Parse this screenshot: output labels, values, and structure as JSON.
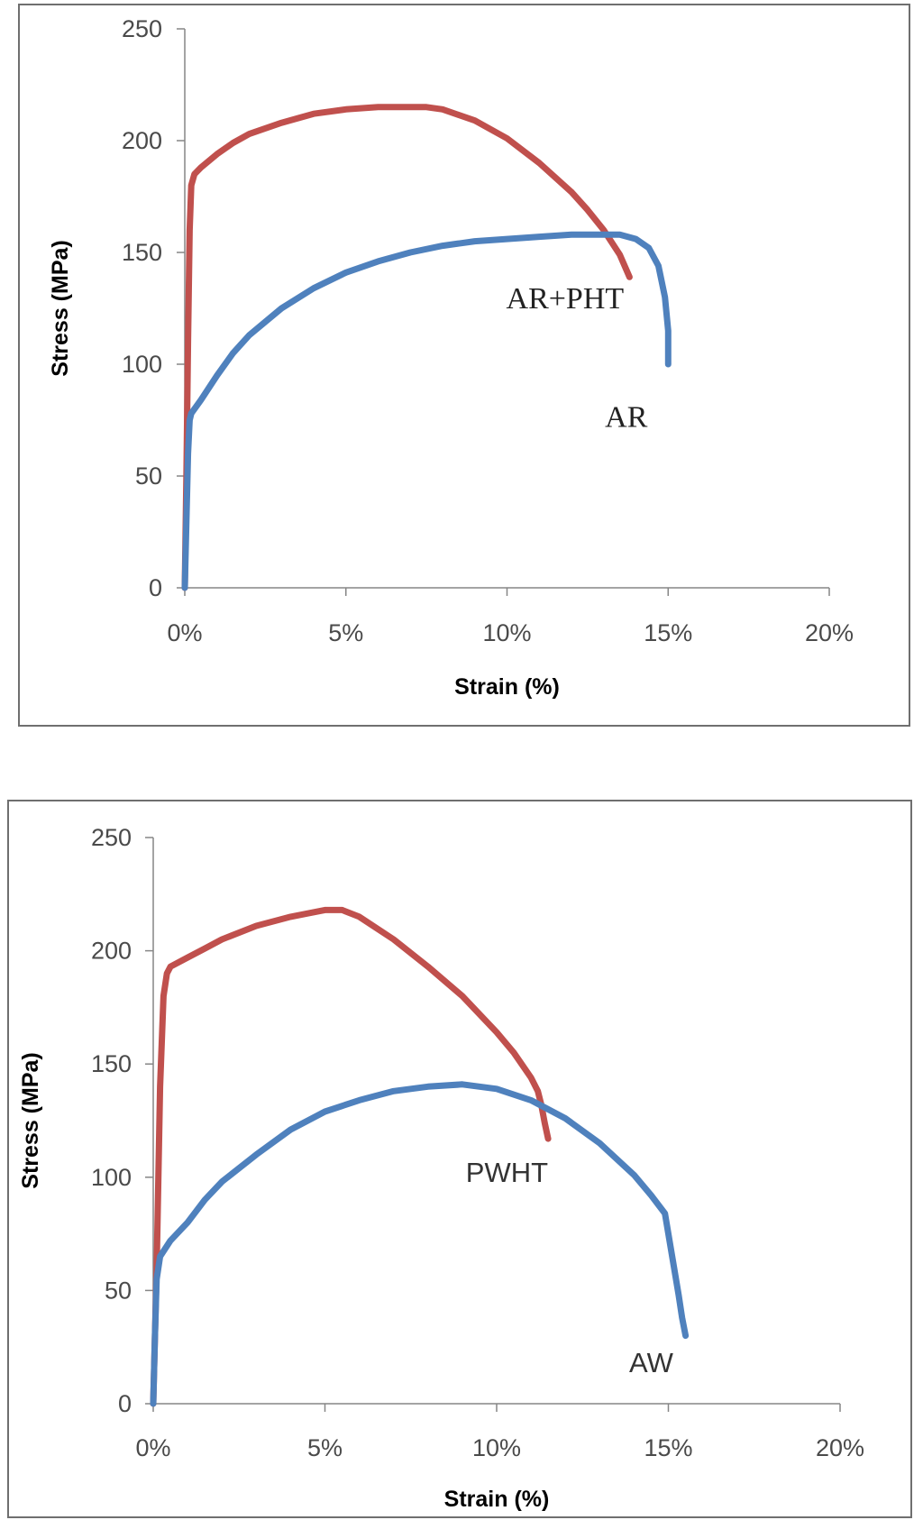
{
  "chart_data": [
    {
      "type": "line",
      "title": "",
      "xlabel": "Strain (%)",
      "ylabel": "Stress (MPa)",
      "xlim": [
        0,
        20
      ],
      "ylim": [
        0,
        250
      ],
      "x_ticks": [
        0,
        5,
        10,
        15,
        20
      ],
      "x_tick_labels": [
        "0%",
        "5%",
        "10%",
        "15%",
        "20%"
      ],
      "y_ticks": [
        0,
        50,
        100,
        150,
        200,
        250
      ],
      "y_tick_labels": [
        "0",
        "50",
        "100",
        "150",
        "200",
        "250"
      ],
      "grid": false,
      "series": [
        {
          "name": "AR+PHT",
          "color": "#c0504d",
          "x": [
            0.0,
            0.05,
            0.1,
            0.15,
            0.2,
            0.3,
            0.5,
            1.0,
            1.5,
            2.0,
            3.0,
            4.0,
            5.0,
            6.0,
            7.0,
            7.5,
            8.0,
            9.0,
            10.0,
            11.0,
            12.0,
            12.5,
            13.0,
            13.5,
            13.8
          ],
          "y": [
            0,
            50,
            110,
            160,
            180,
            185,
            188,
            194,
            199,
            203,
            208,
            212,
            214,
            215,
            215,
            215,
            214,
            209,
            201,
            190,
            177,
            169,
            160,
            149,
            139
          ]
        },
        {
          "name": "AR",
          "color": "#4f81bd",
          "x": [
            0.0,
            0.05,
            0.1,
            0.15,
            0.2,
            0.5,
            1.0,
            1.5,
            2.0,
            3.0,
            4.0,
            5.0,
            6.0,
            7.0,
            8.0,
            9.0,
            10.0,
            11.0,
            12.0,
            13.0,
            13.5,
            14.0,
            14.4,
            14.7,
            14.9,
            15.0,
            15.0
          ],
          "y": [
            0,
            30,
            60,
            75,
            78,
            84,
            95,
            105,
            113,
            125,
            134,
            141,
            146,
            150,
            153,
            155,
            156,
            157,
            158,
            158,
            158,
            156,
            152,
            144,
            130,
            115,
            100
          ]
        }
      ],
      "annotations": [
        {
          "text": "AR+PHT",
          "x": 11.8,
          "y": 125
        },
        {
          "text": "AR",
          "x": 13.7,
          "y": 72
        }
      ]
    },
    {
      "type": "line",
      "title": "",
      "xlabel": "Strain (%)",
      "ylabel": "Stress (MPa)",
      "xlim": [
        0,
        20
      ],
      "ylim": [
        0,
        250
      ],
      "x_ticks": [
        0,
        5,
        10,
        15,
        20
      ],
      "x_tick_labels": [
        "0%",
        "5%",
        "10%",
        "15%",
        "20%"
      ],
      "y_ticks": [
        0,
        50,
        100,
        150,
        200,
        250
      ],
      "y_tick_labels": [
        "0",
        "50",
        "100",
        "150",
        "200",
        "250"
      ],
      "grid": false,
      "series": [
        {
          "name": "PWHT",
          "color": "#c0504d",
          "x": [
            0.0,
            0.1,
            0.2,
            0.3,
            0.4,
            0.5,
            1.0,
            1.5,
            2.0,
            3.0,
            4.0,
            5.0,
            5.5,
            6.0,
            7.0,
            8.0,
            9.0,
            10.0,
            10.5,
            11.0,
            11.2,
            11.3,
            11.4,
            11.5
          ],
          "y": [
            0,
            60,
            140,
            180,
            190,
            193,
            197,
            201,
            205,
            211,
            215,
            218,
            218,
            215,
            205,
            193,
            180,
            164,
            155,
            144,
            138,
            132,
            124,
            117
          ]
        },
        {
          "name": "AW",
          "color": "#4f81bd",
          "x": [
            0.0,
            0.05,
            0.1,
            0.2,
            0.5,
            1.0,
            1.5,
            2.0,
            3.0,
            4.0,
            5.0,
            6.0,
            7.0,
            8.0,
            9.0,
            10.0,
            11.0,
            12.0,
            13.0,
            14.0,
            14.5,
            14.8,
            14.9,
            15.0,
            15.1,
            15.2,
            15.3,
            15.4,
            15.5
          ],
          "y": [
            0,
            30,
            55,
            65,
            72,
            80,
            90,
            98,
            110,
            121,
            129,
            134,
            138,
            140,
            141,
            139,
            134,
            126,
            115,
            101,
            92,
            86,
            84,
            75,
            66,
            57,
            48,
            38,
            30
          ]
        }
      ],
      "annotations": [
        {
          "text": "PWHT",
          "x": 10.3,
          "y": 98
        },
        {
          "text": "AW",
          "x": 14.5,
          "y": 14
        }
      ]
    }
  ]
}
